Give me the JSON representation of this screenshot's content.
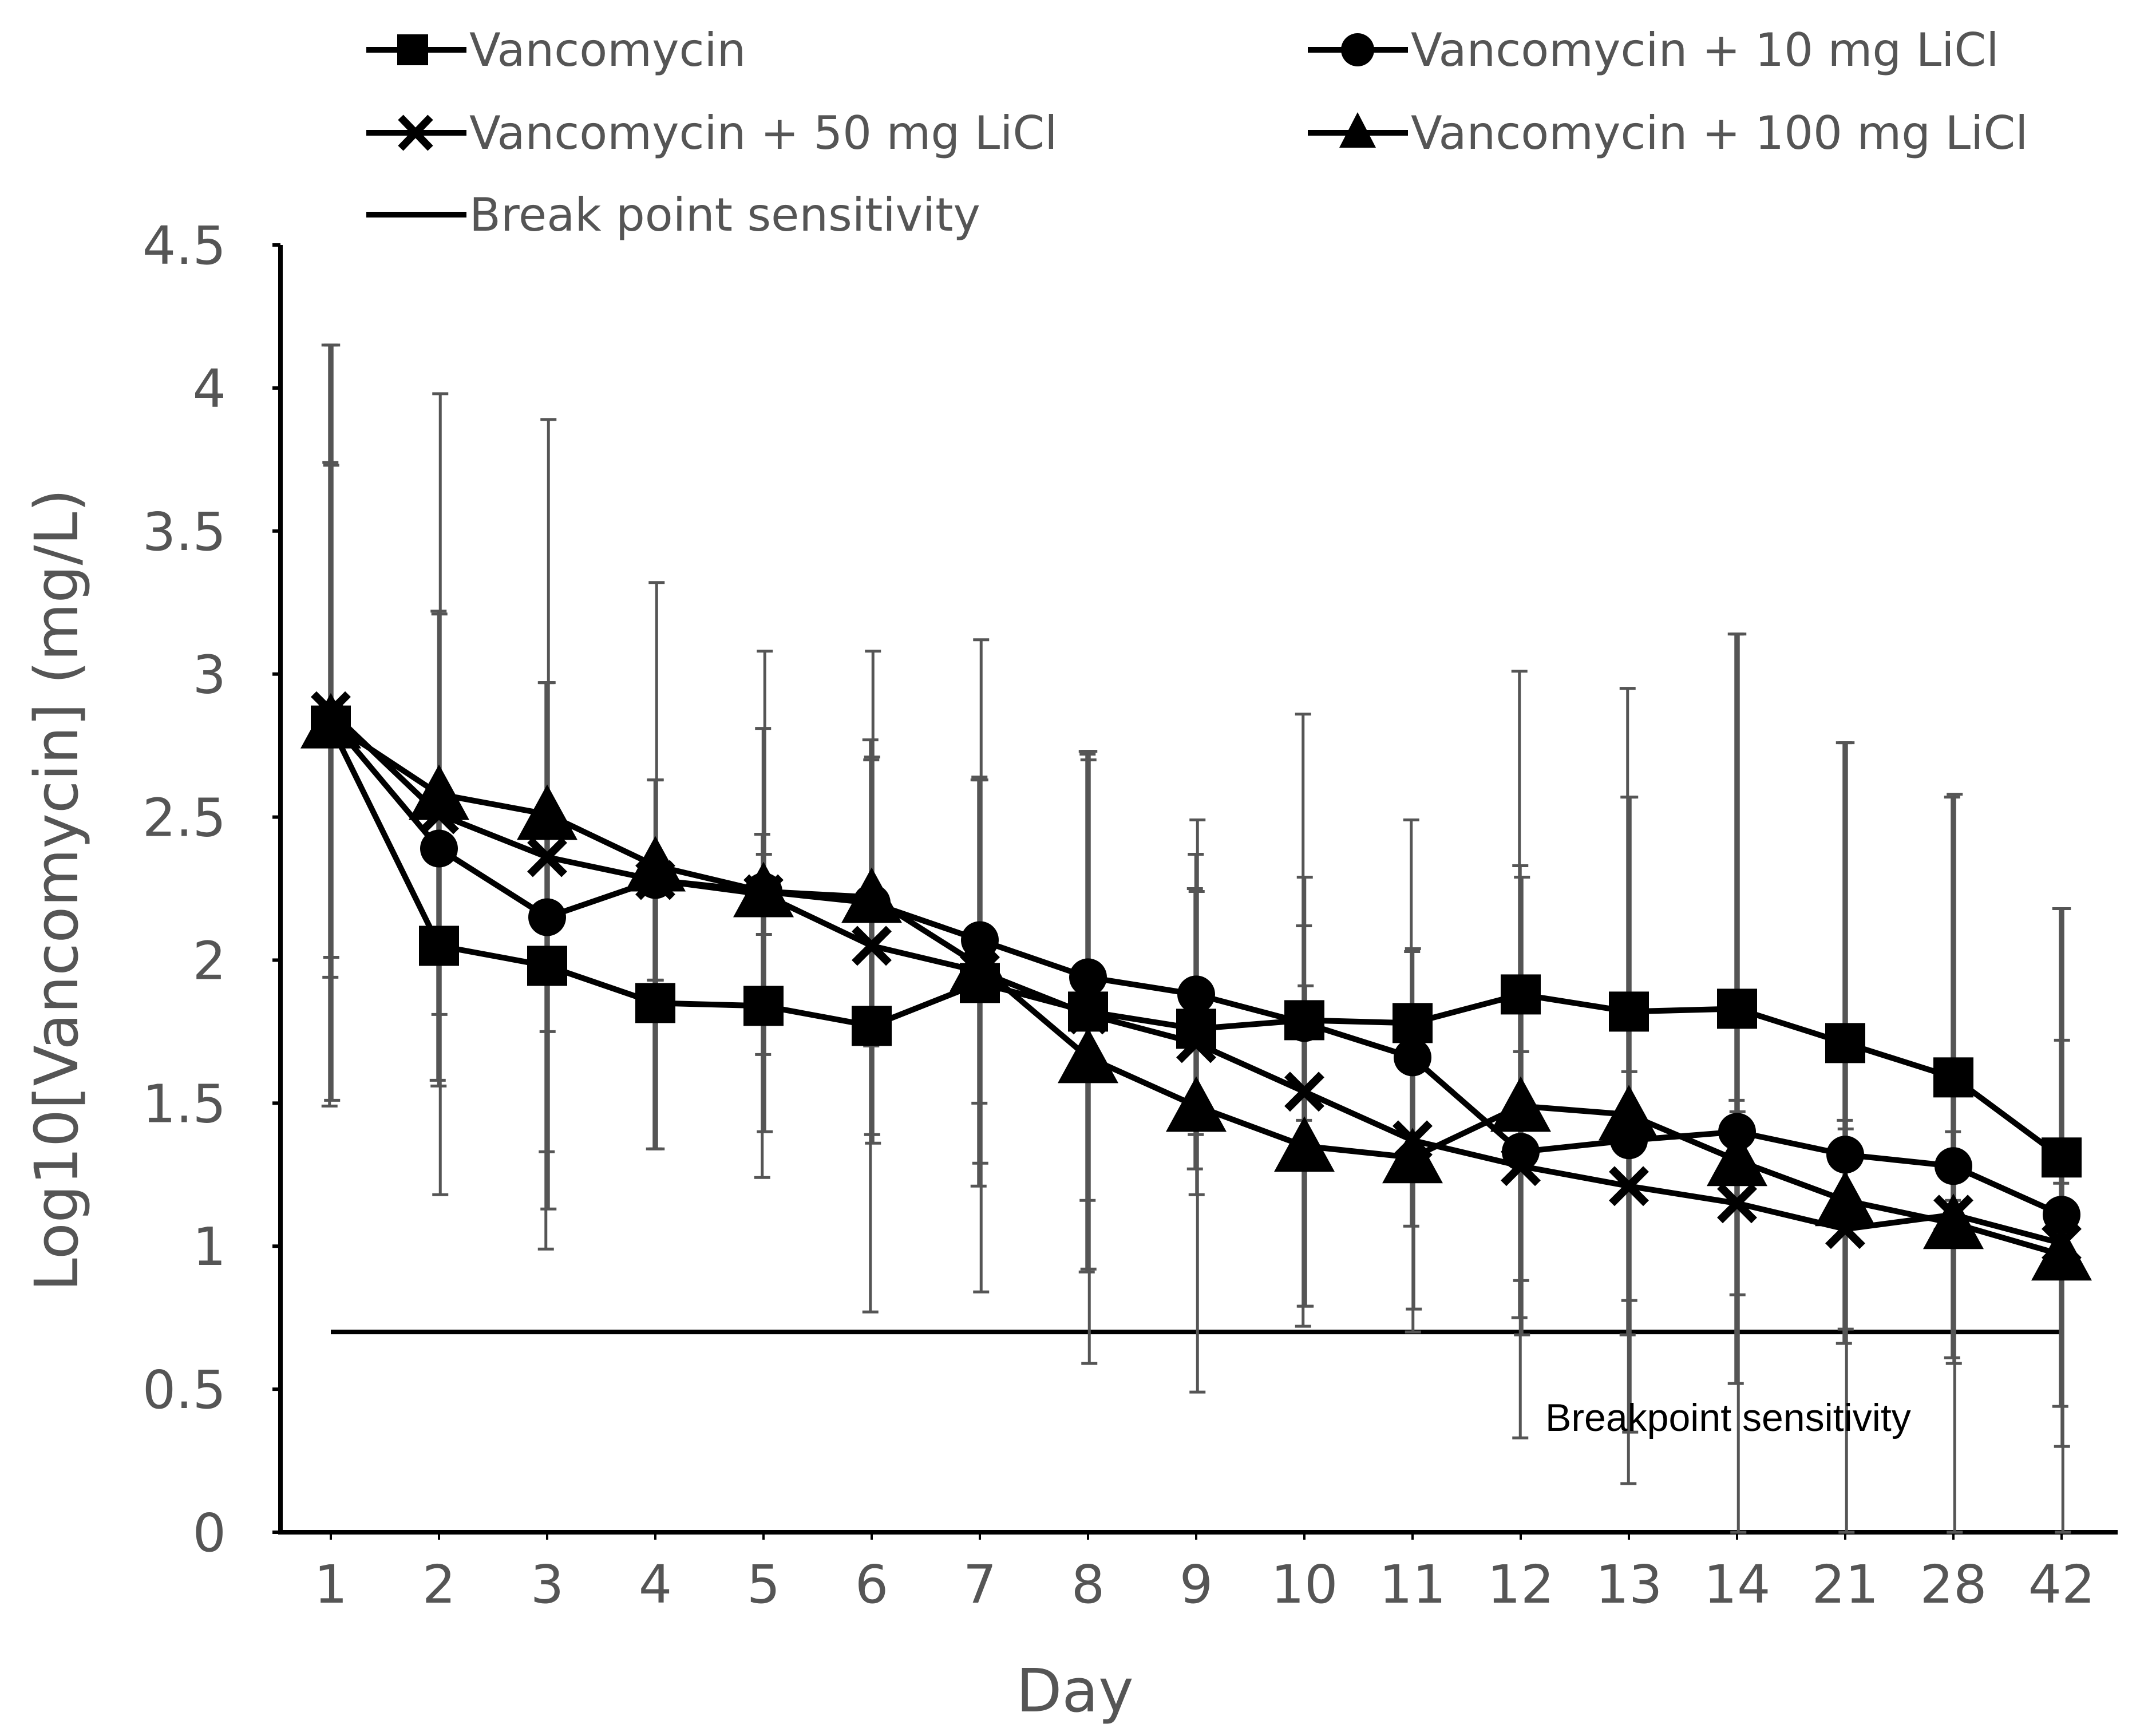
{
  "chart_data": {
    "type": "line",
    "title": "",
    "xlabel": "Day",
    "ylabel": "Log10[Vancomycin] (mg/L)",
    "ylim": [
      0,
      4.5
    ],
    "yticks": [
      "0",
      "0.5",
      "1",
      "1.5",
      "2",
      "2.5",
      "3",
      "3.5",
      "4",
      "4.5"
    ],
    "categories": [
      "1",
      "2",
      "3",
      "4",
      "5",
      "6",
      "7",
      "8",
      "9",
      "10",
      "11",
      "12",
      "13",
      "14",
      "21",
      "28",
      "42"
    ],
    "legend_position": "top",
    "series": [
      {
        "name": "Vancomycin",
        "marker": "square",
        "values": [
          2.82,
          2.05,
          1.98,
          1.85,
          1.84,
          1.77,
          1.92,
          1.82,
          1.76,
          1.79,
          1.78,
          1.88,
          1.82,
          1.83,
          1.71,
          1.59,
          1.31
        ],
        "error": [
          1.33,
          0.47,
          0.99,
          0.51,
          0.6,
          1.0,
          0.71,
          0.91,
          0.49,
          1.07,
          0.71,
          1.13,
          1.13,
          1.31,
          1.05,
          0.98,
          0.87
        ]
      },
      {
        "name": "Vancomycin + 10 mg LiCl",
        "marker": "circle",
        "values": [
          2.84,
          2.39,
          2.15,
          2.28,
          2.24,
          2.2,
          2.07,
          1.94,
          1.88,
          1.78,
          1.66,
          1.33,
          1.37,
          1.4,
          1.32,
          1.28,
          1.11
        ],
        "error": [
          0.9,
          0.83,
          0.82,
          0.35,
          0.57,
          0.5,
          0.57,
          0.78,
          0.49,
          0.34,
          0.37,
          1.0,
          1.2,
          0.11,
          0.12,
          0.12,
          0.11
        ]
      },
      {
        "name": "Vancomycin + 50 mg LiCl",
        "marker": "x",
        "values": [
          2.87,
          2.51,
          2.36,
          2.28,
          2.23,
          2.05,
          1.96,
          1.81,
          1.71,
          1.54,
          1.37,
          1.28,
          1.21,
          1.15,
          1.06,
          1.11,
          1.01
        ],
        "error": [
          0.86,
          0.7,
          0.61,
          0.35,
          0.14,
          0.66,
          0.67,
          0.89,
          0.53,
          0.75,
          0.67,
          0.4,
          0.4,
          0.32,
          0.35,
          0.52,
          0.71
        ]
      },
      {
        "name": "Vancomycin + 100 mg LiCl",
        "marker": "triangle",
        "values": [
          2.83,
          2.58,
          2.51,
          2.33,
          2.24,
          2.22,
          1.98,
          1.66,
          1.49,
          1.35,
          1.31,
          1.49,
          1.46,
          1.3,
          1.16,
          1.08,
          0.97
        ],
        "error": [
          1.32,
          1.4,
          1.38,
          0.99,
          0.84,
          0.86,
          1.14,
          1.07,
          1.0,
          0.56,
          0.53,
          0.8,
          1.11,
          1.84,
          1.6,
          1.5,
          1.21
        ]
      }
    ],
    "reference_lines": [
      {
        "name": "Break point sensitivity",
        "value": 0.7
      }
    ],
    "legend": {
      "s1": "Vancomycin",
      "s2": "Vancomycin + 10 mg LiCl",
      "s3": "Vancomycin + 50 mg LiCl",
      "s4": "Vancomycin + 100 mg LiCl",
      "ref": "Break point sensitivity"
    },
    "annotation": "Breakpoint sensitivity"
  }
}
